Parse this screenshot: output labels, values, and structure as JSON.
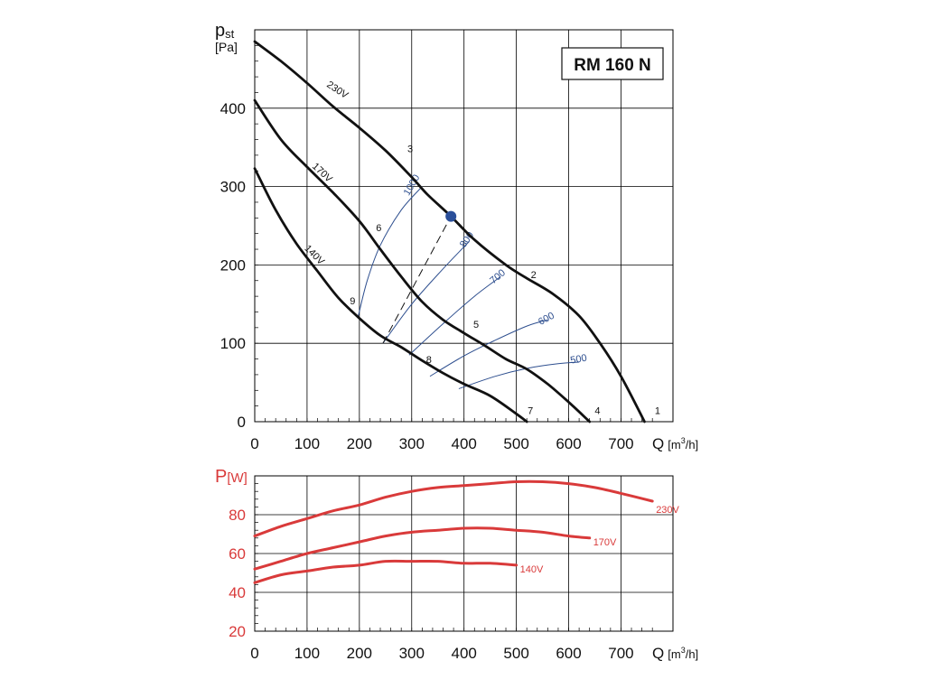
{
  "colors": {
    "grid": "#000000",
    "pressure_curve": "#111111",
    "system_curve": "#2e4f8f",
    "power": "#d93a3a",
    "operating_point": "#2a4f9a",
    "background": "#ffffff"
  },
  "chart_data": [
    {
      "type": "line",
      "title": "RM 160 N",
      "ylabel_main": "p",
      "ylabel_sub": "st",
      "yunit": "[Pa]",
      "xlabel": "Q",
      "xunit_prefix": "[m",
      "xunit_exp": "3",
      "xunit_suffix": "/h]",
      "xlim": [
        0,
        800
      ],
      "ylim": [
        0,
        500
      ],
      "x_ticks": [
        0,
        100,
        200,
        300,
        400,
        500,
        600,
        700
      ],
      "x_tick_labels": [
        "0",
        "100",
        "200",
        "300",
        "400",
        "500",
        "600",
        "700"
      ],
      "y_ticks": [
        0,
        100,
        200,
        300,
        400
      ],
      "y_tick_labels": [
        "0",
        "100",
        "200",
        "300",
        "400"
      ],
      "grid": true,
      "series": [
        {
          "name": "230V",
          "points": [
            [
              0,
              485
            ],
            [
              50,
              460
            ],
            [
              100,
              432
            ],
            [
              150,
              402
            ],
            [
              200,
              375
            ],
            [
              250,
              346
            ],
            [
              300,
              312
            ],
            [
              330,
              290
            ],
            [
              375,
              262
            ],
            [
              420,
              232
            ],
            [
              480,
              200
            ],
            [
              520,
              183
            ],
            [
              570,
              163
            ],
            [
              620,
              135
            ],
            [
              660,
              100
            ],
            [
              700,
              58
            ],
            [
              745,
              0
            ]
          ]
        },
        {
          "name": "170V",
          "points": [
            [
              0,
              410
            ],
            [
              50,
              360
            ],
            [
              100,
              325
            ],
            [
              150,
              292
            ],
            [
              200,
              256
            ],
            [
              240,
              220
            ],
            [
              280,
              185
            ],
            [
              320,
              153
            ],
            [
              360,
              130
            ],
            [
              400,
              113
            ],
            [
              440,
              97
            ],
            [
              480,
              80
            ],
            [
              520,
              67
            ],
            [
              560,
              48
            ],
            [
              600,
              25
            ],
            [
              640,
              0
            ]
          ]
        },
        {
          "name": "140V",
          "points": [
            [
              0,
              323
            ],
            [
              40,
              270
            ],
            [
              80,
              227
            ],
            [
              120,
              192
            ],
            [
              160,
              158
            ],
            [
              200,
              132
            ],
            [
              240,
              110
            ],
            [
              280,
              95
            ],
            [
              320,
              78
            ],
            [
              360,
              62
            ],
            [
              400,
              48
            ],
            [
              450,
              33
            ],
            [
              500,
              10
            ],
            [
              520,
              0
            ]
          ]
        }
      ],
      "curve_labels": [
        {
          "text": "230V",
          "x": 155,
          "y": 420,
          "angle": 33
        },
        {
          "text": "170V",
          "x": 125,
          "y": 315,
          "angle": 43
        },
        {
          "text": "140V",
          "x": 110,
          "y": 210,
          "angle": 45
        }
      ],
      "point_labels": [
        {
          "text": "1",
          "x": 770,
          "y": 10
        },
        {
          "text": "2",
          "x": 533,
          "y": 183
        },
        {
          "text": "3",
          "x": 297,
          "y": 344
        },
        {
          "text": "4",
          "x": 655,
          "y": 10
        },
        {
          "text": "5",
          "x": 423,
          "y": 120
        },
        {
          "text": "6",
          "x": 237,
          "y": 243
        },
        {
          "text": "7",
          "x": 527,
          "y": 10
        },
        {
          "text": "8",
          "x": 333,
          "y": 75
        },
        {
          "text": "9",
          "x": 187,
          "y": 150
        }
      ],
      "system_curves": [
        {
          "name": "1000",
          "points": [
            [
              198,
              135
            ],
            [
              215,
              180
            ],
            [
              240,
              225
            ],
            [
              280,
              270
            ],
            [
              320,
              300
            ]
          ],
          "label_x": 305,
          "label_y": 300
        },
        {
          "name": "800",
          "points": [
            [
              245,
              100
            ],
            [
              300,
              150
            ],
            [
              360,
              195
            ],
            [
              410,
              230
            ]
          ],
          "label_x": 410,
          "label_y": 230
        },
        {
          "name": "700",
          "points": [
            [
              295,
              85
            ],
            [
              360,
              125
            ],
            [
              420,
              160
            ],
            [
              470,
              185
            ]
          ],
          "label_x": 468,
          "label_y": 182
        },
        {
          "name": "600",
          "points": [
            [
              335,
              58
            ],
            [
              400,
              84
            ],
            [
              460,
              104
            ],
            [
              520,
              122
            ],
            [
              560,
              130
            ]
          ],
          "label_x": 560,
          "label_y": 128
        },
        {
          "name": "500",
          "points": [
            [
              390,
              42
            ],
            [
              460,
              58
            ],
            [
              520,
              68
            ],
            [
              580,
              74
            ],
            [
              620,
              76
            ]
          ],
          "label_x": 620,
          "label_y": 76
        }
      ],
      "dashed_line": [
        [
          245,
          100
        ],
        [
          375,
          262
        ]
      ],
      "operating_point": {
        "x": 375,
        "y": 262
      }
    },
    {
      "type": "line",
      "ylabel_main": "P",
      "yunit": "[W]",
      "xlabel": "Q",
      "xunit_prefix": "[m",
      "xunit_exp": "3",
      "xunit_suffix": "/h]",
      "xlim": [
        0,
        800
      ],
      "ylim": [
        20,
        100
      ],
      "x_ticks": [
        0,
        100,
        200,
        300,
        400,
        500,
        600,
        700
      ],
      "x_tick_labels": [
        "0",
        "100",
        "200",
        "300",
        "400",
        "500",
        "600",
        "700"
      ],
      "y_ticks": [
        20,
        40,
        60,
        80
      ],
      "y_tick_labels": [
        "20",
        "40",
        "60",
        "80"
      ],
      "grid": true,
      "series": [
        {
          "name": "230V",
          "label": "230V",
          "points": [
            [
              0,
              69
            ],
            [
              50,
              74
            ],
            [
              100,
              78
            ],
            [
              150,
              82
            ],
            [
              200,
              85
            ],
            [
              250,
              89
            ],
            [
              300,
              92
            ],
            [
              350,
              94
            ],
            [
              400,
              95
            ],
            [
              450,
              96
            ],
            [
              500,
              97
            ],
            [
              550,
              97
            ],
            [
              600,
              96
            ],
            [
              650,
              94
            ],
            [
              700,
              91
            ],
            [
              760,
              87
            ]
          ]
        },
        {
          "name": "170V",
          "label": "170V",
          "points": [
            [
              0,
              52
            ],
            [
              50,
              56
            ],
            [
              100,
              60
            ],
            [
              150,
              63
            ],
            [
              200,
              66
            ],
            [
              250,
              69
            ],
            [
              300,
              71
            ],
            [
              350,
              72
            ],
            [
              400,
              73
            ],
            [
              450,
              73
            ],
            [
              500,
              72
            ],
            [
              550,
              71
            ],
            [
              600,
              69
            ],
            [
              640,
              68
            ]
          ]
        },
        {
          "name": "140V",
          "label": "140V",
          "points": [
            [
              0,
              45
            ],
            [
              50,
              49
            ],
            [
              100,
              51
            ],
            [
              150,
              53
            ],
            [
              200,
              54
            ],
            [
              250,
              56
            ],
            [
              300,
              56
            ],
            [
              350,
              56
            ],
            [
              400,
              55
            ],
            [
              450,
              55
            ],
            [
              500,
              54
            ]
          ]
        }
      ]
    }
  ]
}
